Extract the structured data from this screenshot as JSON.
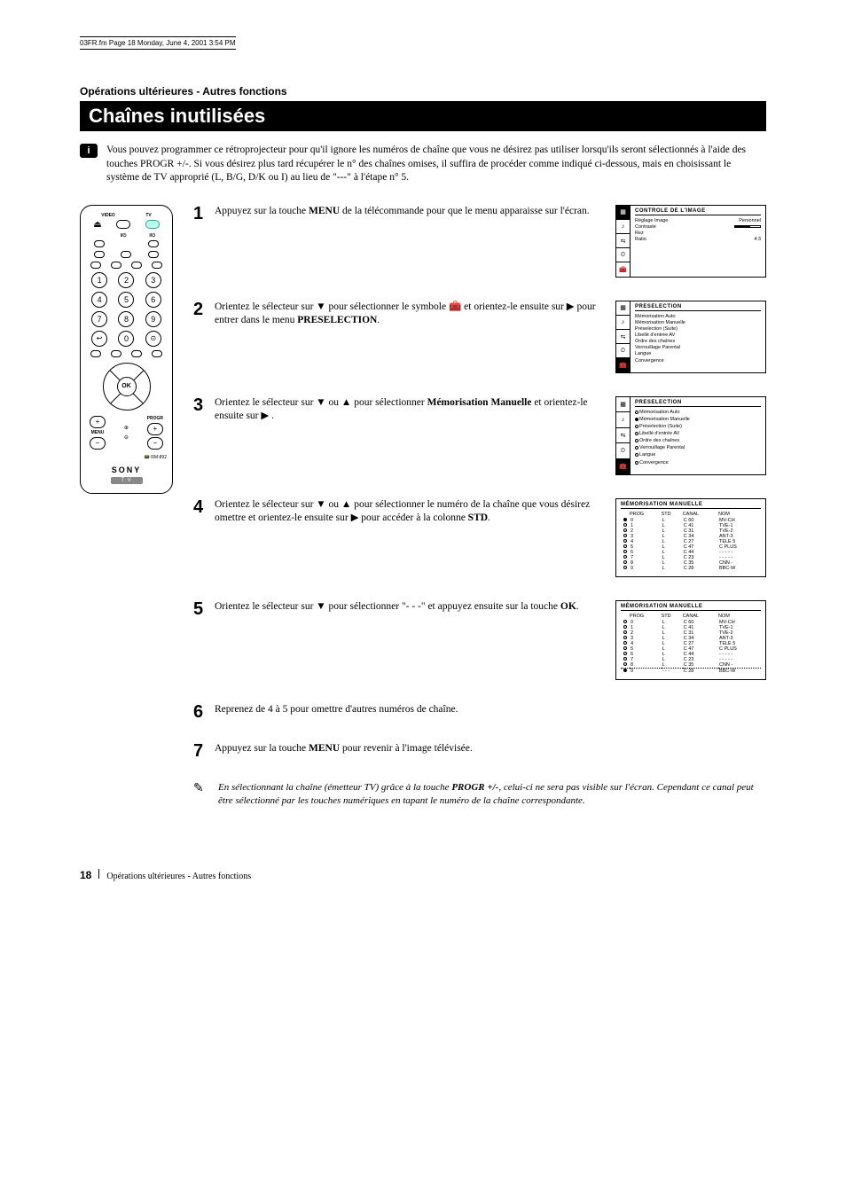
{
  "meta": {
    "file_header": "03FR.fm  Page 18  Monday, June 4, 2001  3:54 PM"
  },
  "section_label": "Opérations ultérieures - Autres fonctions",
  "title": "Chaînes inutilisées",
  "intro": "Vous pouvez programmer ce rétroprojecteur pour qu'il ignore les numéros de chaîne que vous ne désirez pas utiliser lorsqu'ils seront sélectionnés à l'aide des touches PROGR +/-. Si vous désirez plus tard récupérer le n° des chaînes omises, il suffira de procéder comme indiqué ci-dessous, mais en choisissant le système de TV approprié (L, B/G, D/K ou I) au lieu de \"---\" à l'étape n° 5.",
  "remote": {
    "labels_top": [
      "VIDEO",
      "TV"
    ],
    "power_row_sub": [
      "I/⏻",
      "I/⏻"
    ],
    "numbers": [
      "1",
      "2",
      "3",
      "4",
      "5",
      "6",
      "7",
      "8",
      "9",
      "0"
    ],
    "ok_label": "OK",
    "vol_left_label": "MENU",
    "vol_right_label": "PROGR",
    "brand": "SONY",
    "tv_label": "T V",
    "model": "RM-892"
  },
  "steps": [
    {
      "num": "1",
      "body_pre": "Appuyez sur la touche ",
      "body_bold": "MENU",
      "body_post": " de la télécommande pour que le menu apparaisse sur l'écran."
    },
    {
      "num": "2",
      "body_pre": "Orientez le sélecteur sur ▼ pour sélectionner le symbole 🧰 et orientez-le ensuite sur ▶ pour entrer dans le menu ",
      "body_bold": "PRESELECTION",
      "body_post": "."
    },
    {
      "num": "3",
      "body_pre": "Orientez le sélecteur sur  ▼ ou ▲ pour sélectionner ",
      "body_bold": "Mémorisation Manuelle",
      "body_post": " et orientez-le ensuite sur ▶ ."
    },
    {
      "num": "4",
      "body_pre": "Orientez le sélecteur sur ▼ ou ▲ pour sélectionner le numéro de la chaîne que vous désirez omettre et orientez-le ensuite sur ▶ pour accéder à la colonne ",
      "body_bold": "STD",
      "body_post": "."
    },
    {
      "num": "5",
      "body_pre": "Orientez le sélecteur sur  ▼ pour sélectionner \"- - -\" et appuyez ensuite sur la touche ",
      "body_bold": "OK",
      "body_post": "."
    },
    {
      "num": "6",
      "body": "Reprenez de 4 à 5 pour omettre d'autres numéros de chaîne."
    },
    {
      "num": "7",
      "body_pre": "Appuyez sur la touche ",
      "body_bold": "MENU",
      "body_post": " pour revenir à l'image télévisée."
    }
  ],
  "osd1": {
    "title": "CONTROLE  DE  L'IMAGE",
    "items": [
      {
        "label": "Réglage Image",
        "value": "Personnel"
      },
      {
        "label": "Contraste",
        "value": ""
      },
      {
        "label": "Rez",
        "value": ""
      },
      {
        "label": "Ratio",
        "value": "4:3"
      }
    ],
    "active_tab": 0
  },
  "osd2": {
    "title": "PRESELECTION",
    "items": [
      "Mémorisation Auto",
      "Mémorisation Manuelle",
      "Préselection (Suite)",
      "Libellé d'entrée AV",
      "Ordre des chaînes",
      "Verrouillage Parental",
      "Langue",
      "Convergence"
    ],
    "active_tab": 4
  },
  "osd3": {
    "title": "PRESELECTION",
    "items": [
      "Mémorisation Auto",
      "Mémorisation Manuelle",
      "Préselection (Suite)",
      "Libellé d'entrée AV",
      "Ordre des chaînes",
      "Verrouillage Parental",
      "Langue",
      "Convergence"
    ],
    "selected_index": 1,
    "active_tab": 4
  },
  "osd4": {
    "title": "MÉMORISATION  MANUELLE",
    "headers": [
      "",
      "PROG",
      "STD",
      "CANAL",
      "NOM"
    ],
    "rows": [
      [
        "sel",
        "0",
        "L",
        "C  60",
        "MV-CH"
      ],
      [
        "open",
        "1",
        "L",
        "C  41",
        "TVE-1"
      ],
      [
        "open",
        "2",
        "L",
        "C  31",
        "TVE-2"
      ],
      [
        "open",
        "3",
        "L",
        "C  34",
        "ANT-3"
      ],
      [
        "open",
        "4",
        "L",
        "C  27",
        "TELE 5"
      ],
      [
        "open",
        "5",
        "L",
        "C  47",
        "C PLUS"
      ],
      [
        "open",
        "6",
        "L",
        "C  44",
        "- - - - -"
      ],
      [
        "open",
        "7",
        "L",
        "C  23",
        "- - - - -"
      ],
      [
        "open",
        "8",
        "L",
        "C  35",
        "CNN -"
      ],
      [
        "open",
        "9",
        "L",
        "C  28",
        "BBC-W"
      ]
    ]
  },
  "osd5": {
    "title": "MÉMORISATION  MANUELLE",
    "headers": [
      "",
      "PROG",
      "STD",
      "CANAL",
      "NOM"
    ],
    "rows": [
      [
        "open",
        "0",
        "L",
        "C  60",
        "MV-CH"
      ],
      [
        "open",
        "1",
        "L",
        "C  41",
        "TVE-1"
      ],
      [
        "open",
        "2",
        "L",
        "C  31",
        "TVE-2"
      ],
      [
        "open",
        "3",
        "L",
        "C  34",
        "ANT-3"
      ],
      [
        "open",
        "4",
        "L",
        "C  27",
        "TELE 5"
      ],
      [
        "open",
        "5",
        "L",
        "C  47",
        "C PLUS"
      ],
      [
        "open",
        "6",
        "L",
        "C  44",
        "- - - - -"
      ],
      [
        "open",
        "7",
        "L",
        "C  23",
        "- - - - -"
      ],
      [
        "open",
        "8",
        "L",
        "C  35",
        "CNN -"
      ],
      [
        "sel",
        "9",
        "- - -",
        "C  28",
        "BBC-W"
      ]
    ],
    "dotted_row": 8
  },
  "note": {
    "text_pre": "En sélectionnant la chaîne (émetteur TV) grâce à la touche ",
    "text_bold": "PROGR +/-",
    "text_post": ", celui-ci ne sera pas visible sur l'écran. Cependant ce canal peut être sélectionné  par les touches numériques en tapant le numéro de la chaîne correspondante."
  },
  "footer": {
    "page_number": "18",
    "section": "Opérations ultérieures - Autres fonctions"
  }
}
